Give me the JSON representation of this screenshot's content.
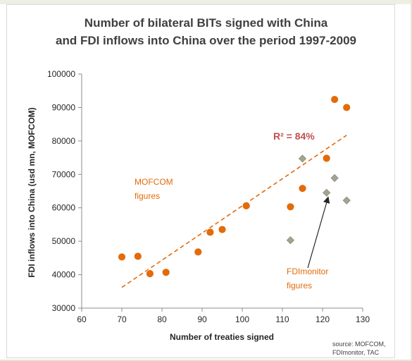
{
  "chart_data": {
    "type": "scatter",
    "title_line1": "Number of bilateral BITs signed with China",
    "title_line2": "and FDI inflows into China over the period 1997-2009",
    "xlabel": "Number of treaties  signed",
    "ylabel": "FDI inflows into China (usd mn, MOFCOM)",
    "xlim": [
      60,
      130
    ],
    "ylim": [
      30000,
      100000
    ],
    "x_ticks": [
      60,
      70,
      80,
      90,
      100,
      110,
      120,
      130
    ],
    "y_ticks": [
      30000,
      40000,
      50000,
      60000,
      70000,
      80000,
      90000,
      100000
    ],
    "grid": false,
    "series": [
      {
        "name": "MOFCOM figures",
        "marker": "circle",
        "color": "#e26b0a",
        "points": [
          [
            70,
            45300
          ],
          [
            74,
            45500
          ],
          [
            77,
            40300
          ],
          [
            81,
            40700
          ],
          [
            89,
            46800
          ],
          [
            92,
            52700
          ],
          [
            95,
            53500
          ],
          [
            101,
            60600
          ],
          [
            112,
            60300
          ],
          [
            115,
            65800
          ],
          [
            121,
            74800
          ],
          [
            123,
            92400
          ],
          [
            126,
            90000
          ]
        ]
      },
      {
        "name": "FDImonitor figures",
        "marker": "diamond",
        "color": "#a6a393",
        "points": [
          [
            112,
            50300
          ],
          [
            115,
            74700
          ],
          [
            121,
            64500
          ],
          [
            123,
            68900
          ],
          [
            126,
            62200
          ]
        ]
      }
    ],
    "trendline": {
      "style": "dashed",
      "color": "#e26b0a",
      "x": [
        70,
        126
      ],
      "y": [
        36200,
        81700
      ]
    },
    "annotations": {
      "r_squared": "R² = 84%",
      "mofcom_line1": "MOFCOM",
      "mofcom_line2": "figures",
      "fdi_line1": "FDImonitor",
      "fdi_line2": "figures"
    },
    "source_line1": "source: MOFCOM,",
    "source_line2": "FDImonitor, TAC"
  }
}
